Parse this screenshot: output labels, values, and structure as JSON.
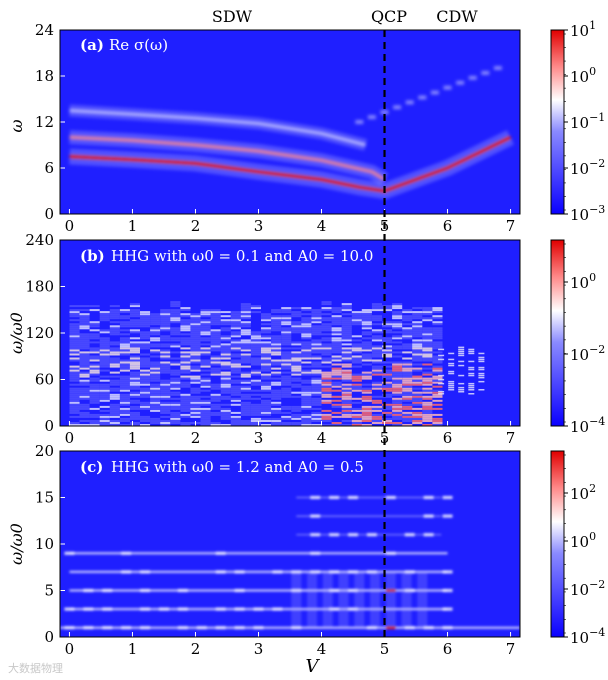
{
  "figure": {
    "top_labels": {
      "sdw": "SDW",
      "qcp": "QCP",
      "cdw": "CDW"
    },
    "x_axis_label": "V",
    "qcp_line_at": 5.0,
    "watermark": "大数据物理"
  },
  "colors": {
    "low": "#1a1aff",
    "mid": "#ffffff",
    "high": "#e00000",
    "background": "#1f1fff",
    "dashed_line": "#000000"
  },
  "chart_data": [
    {
      "type": "heatmap",
      "title": "(a) Re σ(ω)",
      "panel_label": "(a)",
      "title_text": "Re σ(ω)",
      "xlabel": "V",
      "ylabel": "ω",
      "xlim": [
        -0.15,
        7.15
      ],
      "ylim": [
        0,
        24
      ],
      "xticks": [
        0,
        1,
        2,
        3,
        4,
        5,
        6,
        7
      ],
      "yticks": [
        0,
        6,
        12,
        18,
        24
      ],
      "colorbar": {
        "scale": "log",
        "min": 0.001,
        "max": 10,
        "ticks": [
          "10^1",
          "10^0",
          "10^-1",
          "10^-2",
          "10^-3"
        ]
      },
      "bands": [
        {
          "name": "lower peak",
          "points": [
            [
              0,
              7.5
            ],
            [
              1,
              7.1
            ],
            [
              2,
              6.6
            ],
            [
              3,
              5.5
            ],
            [
              4,
              4.5
            ],
            [
              4.6,
              3.5
            ],
            [
              5.0,
              3.0
            ],
            [
              5.5,
              4.5
            ],
            [
              6.0,
              6.0
            ],
            [
              6.5,
              8.0
            ],
            [
              7.0,
              10.0
            ]
          ]
        },
        {
          "name": "upper peak",
          "points": [
            [
              0,
              10.0
            ],
            [
              1,
              9.6
            ],
            [
              2,
              9.0
            ],
            [
              3,
              8.2
            ],
            [
              4,
              7.0
            ],
            [
              4.8,
              5.5
            ],
            [
              5.0,
              4.5
            ]
          ]
        },
        {
          "name": "high-energy mode",
          "points": [
            [
              0,
              13.5
            ],
            [
              1,
              13.0
            ],
            [
              2,
              12.5
            ],
            [
              3,
              11.8
            ],
            [
              4,
              10.5
            ],
            [
              4.7,
              9.0
            ]
          ]
        }
      ]
    },
    {
      "type": "heatmap",
      "title": "(b) HHG with ω0 = 0.1 and A0 = 10.0",
      "panel_label": "(b)",
      "title_text": "HHG with ω0 = 0.1 and A0 = 10.0",
      "xlabel": "V",
      "ylabel": "ω/ω0",
      "xlim": [
        -0.15,
        7.15
      ],
      "ylim": [
        0,
        240
      ],
      "xticks": [
        0,
        1,
        2,
        3,
        4,
        5,
        6,
        7
      ],
      "yticks": [
        0,
        60,
        120,
        180,
        240
      ],
      "colorbar": {
        "scale": "log",
        "min": 0.0001,
        "max": 10,
        "ticks": [
          "10^0",
          "10^-2",
          "10^-4"
        ]
      },
      "regions": [
        {
          "name": "spectrum cutoff",
          "v_range": [
            0,
            5.85
          ],
          "omega_max": 160
        },
        {
          "name": "enhanced low harmonics",
          "v_range": [
            4.0,
            5.85
          ],
          "omega_range": [
            0,
            80
          ]
        },
        {
          "name": "CDW tail",
          "v_range": [
            5.85,
            6.6
          ],
          "omega_range": [
            40,
            100
          ]
        }
      ]
    },
    {
      "type": "heatmap",
      "title": "(c) HHG with ω0 = 1.2 and A0 = 0.5",
      "panel_label": "(c)",
      "title_text": "HHG with ω0 = 1.2 and A0 = 0.5",
      "xlabel": "V",
      "ylabel": "ω/ω0",
      "xlim": [
        -0.15,
        7.15
      ],
      "ylim": [
        0,
        20
      ],
      "xticks": [
        0,
        1,
        2,
        3,
        4,
        5,
        6,
        7
      ],
      "yticks": [
        0,
        5,
        10,
        15,
        20
      ],
      "colorbar": {
        "scale": "log",
        "min": 0.0001,
        "max": 1000,
        "ticks": [
          "10^2",
          "10^0",
          "10^-2",
          "10^-4"
        ]
      },
      "harmonics": [
        1,
        3,
        5,
        7,
        9,
        11,
        13,
        15
      ]
    }
  ]
}
